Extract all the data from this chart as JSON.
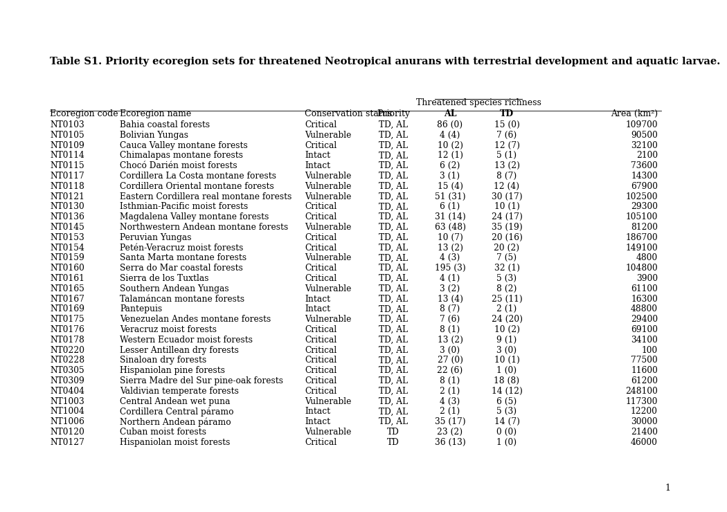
{
  "title": "Table S1. Priority ecoregion sets for threatened Neotropical anurans with terrestrial development and aquatic larvae.",
  "threatened_header": "Threatened species richness",
  "col_headers_row1": [
    "",
    "",
    "",
    "",
    "Threatened species richness",
    "",
    ""
  ],
  "col_headers_row2": [
    "Ecoregion code",
    "Ecoregion name",
    "Conservation status",
    "Priority",
    "AL",
    "TD",
    "Area (km²)"
  ],
  "rows": [
    [
      "NT0103",
      "Bahia coastal forests",
      "Critical",
      "TD, AL",
      "86 (0)",
      "15 (0)",
      "109700"
    ],
    [
      "NT0105",
      "Bolivian Yungas",
      "Vulnerable",
      "TD, AL",
      "4 (4)",
      "7 (6)",
      "90500"
    ],
    [
      "NT0109",
      "Cauca Valley montane forests",
      "Critical",
      "TD, AL",
      "10 (2)",
      "12 (7)",
      "32100"
    ],
    [
      "NT0114",
      "Chimalapas montane forests",
      "Intact",
      "TD, AL",
      "12 (1)",
      "5 (1)",
      "2100"
    ],
    [
      "NT0115",
      "Chocó Darién moist forests",
      "Intact",
      "TD, AL",
      "6 (2)",
      "13 (2)",
      "73600"
    ],
    [
      "NT0117",
      "Cordillera La Costa montane forests",
      "Vulnerable",
      "TD, AL",
      "3 (1)",
      "8 (7)",
      "14300"
    ],
    [
      "NT0118",
      "Cordillera Oriental montane forests",
      "Vulnerable",
      "TD, AL",
      "15 (4)",
      "12 (4)",
      "67900"
    ],
    [
      "NT0121",
      "Eastern Cordillera real montane forests",
      "Vulnerable",
      "TD, AL",
      "51 (31)",
      "30 (17)",
      "102500"
    ],
    [
      "NT0130",
      "Isthmian-Pacific moist forests",
      "Critical",
      "TD, AL",
      "6 (1)",
      "10 (1)",
      "29300"
    ],
    [
      "NT0136",
      "Magdalena Valley montane forests",
      "Critical",
      "TD, AL",
      "31 (14)",
      "24 (17)",
      "105100"
    ],
    [
      "NT0145",
      "Northwestern Andean montane forests",
      "Vulnerable",
      "TD, AL",
      "63 (48)",
      "35 (19)",
      "81200"
    ],
    [
      "NT0153",
      "Peruvian Yungas",
      "Critical",
      "TD, AL",
      "10 (7)",
      "20 (16)",
      "186700"
    ],
    [
      "NT0154",
      "Petén-Veracruz moist forests",
      "Critical",
      "TD, AL",
      "13 (2)",
      "20 (2)",
      "149100"
    ],
    [
      "NT0159",
      "Santa Marta montane forests",
      "Vulnerable",
      "TD, AL",
      "4 (3)",
      "7 (5)",
      "4800"
    ],
    [
      "NT0160",
      "Serra do Mar coastal forests",
      "Critical",
      "TD, AL",
      "195 (3)",
      "32 (1)",
      "104800"
    ],
    [
      "NT0161",
      "Sierra de los Tuxtlas",
      "Critical",
      "TD, AL",
      "4 (1)",
      "5 (3)",
      "3900"
    ],
    [
      "NT0165",
      "Southern Andean Yungas",
      "Vulnerable",
      "TD, AL",
      "3 (2)",
      "8 (2)",
      "61100"
    ],
    [
      "NT0167",
      "Talamáncan montane forests",
      "Intact",
      "TD, AL",
      "13 (4)",
      "25 (11)",
      "16300"
    ],
    [
      "NT0169",
      "Pantepuis",
      "Intact",
      "TD, AL",
      "8 (7)",
      "2 (1)",
      "48800"
    ],
    [
      "NT0175",
      "Venezuelan Andes montane forests",
      "Vulnerable",
      "TD, AL",
      "7 (6)",
      "24 (20)",
      "29400"
    ],
    [
      "NT0176",
      "Veracruz moist forests",
      "Critical",
      "TD, AL",
      "8 (1)",
      "10 (2)",
      "69100"
    ],
    [
      "NT0178",
      "Western Ecuador moist forests",
      "Critical",
      "TD, AL",
      "13 (2)",
      "9 (1)",
      "34100"
    ],
    [
      "NT0220",
      "Lesser Antillean dry forests",
      "Critical",
      "TD, AL",
      "3 (0)",
      "3 (0)",
      "100"
    ],
    [
      "NT0228",
      "Sinaloan dry forests",
      "Critical",
      "TD, AL",
      "27 (0)",
      "10 (1)",
      "77500"
    ],
    [
      "NT0305",
      "Hispaniolan pine forests",
      "Critical",
      "TD, AL",
      "22 (6)",
      "1 (0)",
      "11600"
    ],
    [
      "NT0309",
      "Sierra Madre del Sur pine-oak forests",
      "Critical",
      "TD, AL",
      "8 (1)",
      "18 (8)",
      "61200"
    ],
    [
      "NT0404",
      "Valdivian temperate forests",
      "Critical",
      "TD, AL",
      "2 (1)",
      "14 (12)",
      "248100"
    ],
    [
      "NT1003",
      "Central Andean wet puna",
      "Vulnerable",
      "TD, AL",
      "4 (3)",
      "6 (5)",
      "117300"
    ],
    [
      "NT1004",
      "Cordillera Central páramo",
      "Intact",
      "TD, AL",
      "2 (1)",
      "5 (3)",
      "12200"
    ],
    [
      "NT1006",
      "Northern Andean páramo",
      "Intact",
      "TD, AL",
      "35 (17)",
      "14 (7)",
      "30000"
    ],
    [
      "NT0120",
      "Cuban moist forests",
      "Vulnerable",
      "TD",
      "23 (2)",
      "0 (0)",
      "21400"
    ],
    [
      "NT0127",
      "Hispaniolan moist forests",
      "Critical",
      "TD",
      "36 (13)",
      "1 (0)",
      "46000"
    ]
  ],
  "page_number": "1",
  "bg_color": "#ffffff",
  "text_color": "#000000"
}
